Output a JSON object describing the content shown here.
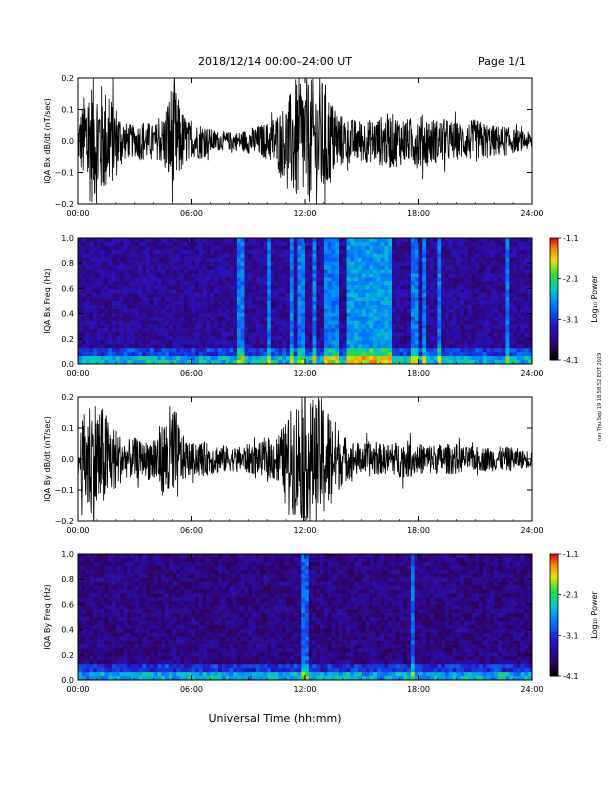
{
  "header": {
    "title": "2018/12/14   00:00–24:00 UT",
    "page": "Page 1/1"
  },
  "footer": {
    "xlabel": "Universal Time (hh:mm)",
    "side_note": "run Thu Sep 19 18:58:52 EDT 2019"
  },
  "colorbar": {
    "label": "Log₁₀ Power",
    "ticks": [
      "-1.1",
      "-2.1",
      "-3.1",
      "-4.1"
    ],
    "colors": [
      "#d01010",
      "#ff8000",
      "#e8e800",
      "#30e030",
      "#00c0c0",
      "#0090ff",
      "#3020d0",
      "#300060",
      "#000000"
    ]
  },
  "chart_data": [
    {
      "type": "line",
      "panel": "waveform-bx",
      "ylabel": "IQA Bx dB/dt (nT/sec)",
      "ylim": [
        -0.2,
        0.2
      ],
      "yticks": [
        "0.2",
        "0.1",
        "0.0",
        "−0.1",
        "−0.2"
      ],
      "xlim_hours": [
        0,
        24
      ],
      "xticks": [
        "00:00",
        "06:00",
        "12:00",
        "18:00",
        "24:00"
      ],
      "x_hours": [
        0.0,
        0.5,
        1.0,
        1.5,
        2.0,
        2.5,
        3.0,
        3.5,
        4.0,
        4.5,
        5.0,
        5.5,
        6.0,
        6.5,
        7.0,
        7.5,
        8.0,
        8.5,
        9.0,
        9.5,
        10.0,
        10.5,
        11.0,
        11.5,
        12.0,
        12.5,
        13.0,
        13.5,
        14.0,
        14.5,
        15.0,
        15.5,
        16.0,
        16.5,
        17.0,
        17.5,
        18.0,
        18.5,
        19.0,
        19.5,
        20.0,
        20.5,
        21.0,
        21.5,
        22.0,
        22.5,
        23.0,
        23.5,
        24.0
      ],
      "amplitude": [
        0.06,
        0.2,
        0.2,
        0.17,
        0.12,
        0.06,
        0.05,
        0.07,
        0.05,
        0.08,
        0.2,
        0.1,
        0.05,
        0.06,
        0.04,
        0.03,
        0.03,
        0.03,
        0.04,
        0.05,
        0.06,
        0.09,
        0.12,
        0.2,
        0.2,
        0.2,
        0.2,
        0.12,
        0.08,
        0.07,
        0.07,
        0.07,
        0.08,
        0.09,
        0.08,
        0.07,
        0.09,
        0.08,
        0.07,
        0.07,
        0.06,
        0.06,
        0.07,
        0.06,
        0.05,
        0.05,
        0.04,
        0.03,
        0.03
      ]
    },
    {
      "type": "heatmap",
      "panel": "spectrogram-bx",
      "ylabel": "IQA Bx Freq (Hz)",
      "ylim": [
        0.0,
        1.0
      ],
      "yticks": [
        "1.0",
        "0.8",
        "0.6",
        "0.4",
        "0.2",
        "0.0"
      ],
      "xticks": [
        "00:00",
        "06:00",
        "12:00",
        "18:00",
        "24:00"
      ],
      "zlim_log10": [
        -4.1,
        -1.1
      ],
      "background_log10": -3.5,
      "bright_stripes_hours": [
        8.6,
        10.1,
        11.3,
        11.8,
        12.5,
        13.2,
        13.6,
        15.0,
        15.4,
        15.8,
        16.3,
        17.8,
        18.3,
        19.1,
        22.7
      ],
      "broadband_band_hours": [
        14.2,
        16.6
      ]
    },
    {
      "type": "line",
      "panel": "waveform-by",
      "ylabel": "IQA By dB/dt (nT/sec)",
      "ylim": [
        -0.2,
        0.2
      ],
      "yticks": [
        "0.2",
        "0.1",
        "0.0",
        "−0.1",
        "−0.2"
      ],
      "xlim_hours": [
        0,
        24
      ],
      "xticks": [
        "00:00",
        "06:00",
        "12:00",
        "18:00",
        "24:00"
      ],
      "x_hours": [
        0.0,
        0.5,
        1.0,
        1.5,
        2.0,
        2.5,
        3.0,
        3.5,
        4.0,
        4.5,
        5.0,
        5.5,
        6.0,
        6.5,
        7.0,
        7.5,
        8.0,
        8.5,
        9.0,
        9.5,
        10.0,
        10.5,
        11.0,
        11.5,
        12.0,
        12.5,
        13.0,
        13.5,
        14.0,
        14.5,
        15.0,
        15.5,
        16.0,
        16.5,
        17.0,
        17.5,
        18.0,
        18.5,
        19.0,
        19.5,
        20.0,
        20.5,
        21.0,
        21.5,
        22.0,
        22.5,
        23.0,
        23.5,
        24.0
      ],
      "amplitude": [
        0.06,
        0.2,
        0.2,
        0.15,
        0.1,
        0.06,
        0.07,
        0.05,
        0.09,
        0.12,
        0.2,
        0.08,
        0.05,
        0.06,
        0.05,
        0.05,
        0.04,
        0.04,
        0.05,
        0.05,
        0.06,
        0.08,
        0.12,
        0.2,
        0.2,
        0.2,
        0.2,
        0.14,
        0.08,
        0.06,
        0.05,
        0.06,
        0.05,
        0.05,
        0.06,
        0.06,
        0.05,
        0.05,
        0.05,
        0.05,
        0.05,
        0.04,
        0.04,
        0.04,
        0.04,
        0.04,
        0.04,
        0.03,
        0.03
      ]
    },
    {
      "type": "heatmap",
      "panel": "spectrogram-by",
      "ylabel": "IQA By Freq (Hz)",
      "ylim": [
        0.0,
        1.0
      ],
      "yticks": [
        "1.0",
        "0.8",
        "0.6",
        "0.4",
        "0.2",
        "0.0"
      ],
      "xticks": [
        "00:00",
        "06:00",
        "12:00",
        "18:00",
        "24:00"
      ],
      "zlim_log10": [
        -4.1,
        -1.1
      ],
      "background_log10": -3.6,
      "bright_stripes_hours": [
        12.0,
        17.7
      ],
      "broadband_band_hours": []
    }
  ]
}
